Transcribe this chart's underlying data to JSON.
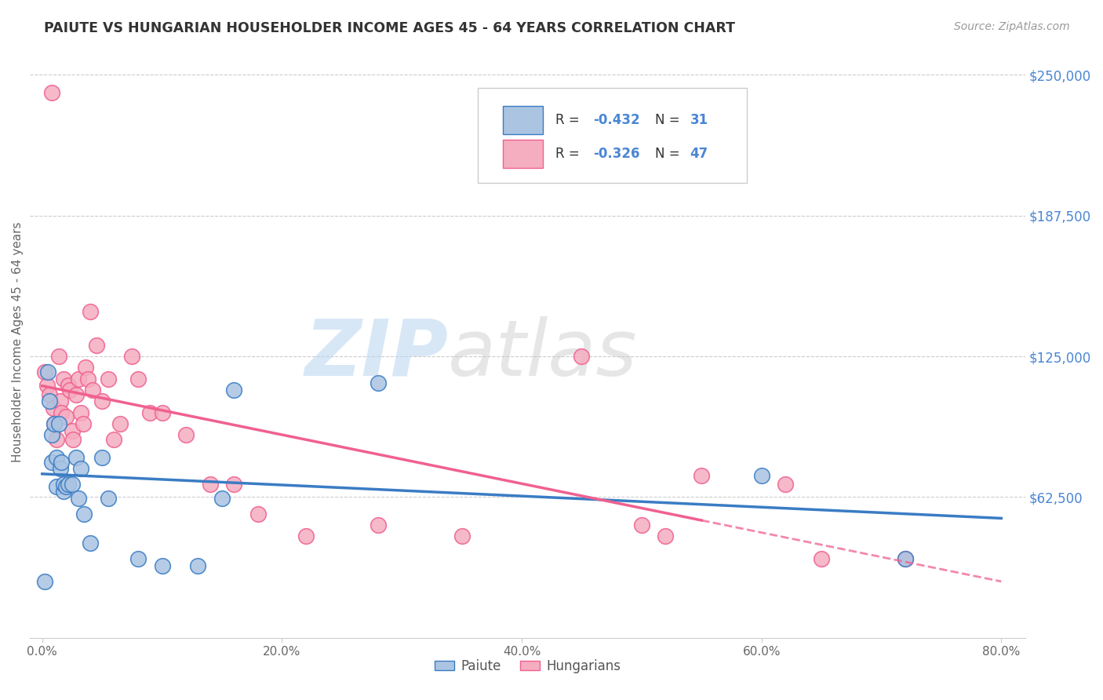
{
  "title": "PAIUTE VS HUNGARIAN HOUSEHOLDER INCOME AGES 45 - 64 YEARS CORRELATION CHART",
  "source": "Source: ZipAtlas.com",
  "ylabel": "Householder Income Ages 45 - 64 years",
  "xlim": [
    -0.01,
    0.82
  ],
  "ylim": [
    0,
    262500
  ],
  "xtick_labels": [
    "0.0%",
    "20.0%",
    "40.0%",
    "60.0%",
    "80.0%"
  ],
  "xtick_vals": [
    0.0,
    0.2,
    0.4,
    0.6,
    0.8
  ],
  "ytick_labels": [
    "$62,500",
    "$125,000",
    "$187,500",
    "$250,000"
  ],
  "ytick_vals": [
    62500,
    125000,
    187500,
    250000
  ],
  "paiute_color": "#aac4e2",
  "hungarian_color": "#f5adc0",
  "paiute_line_color": "#3a7cc4",
  "hungarian_line_color": "#f06090",
  "legend_R_paiute": "-0.432",
  "legend_N_paiute": "31",
  "legend_R_hungarian": "-0.326",
  "legend_N_hungarian": "47",
  "watermark_zip": "ZIP",
  "watermark_atlas": "atlas",
  "paiute_x": [
    0.002,
    0.005,
    0.006,
    0.008,
    0.008,
    0.01,
    0.012,
    0.012,
    0.014,
    0.015,
    0.016,
    0.018,
    0.018,
    0.02,
    0.022,
    0.025,
    0.028,
    0.03,
    0.032,
    0.035,
    0.04,
    0.05,
    0.055,
    0.08,
    0.1,
    0.13,
    0.15,
    0.16,
    0.28,
    0.6,
    0.72
  ],
  "paiute_y": [
    25000,
    118000,
    105000,
    90000,
    78000,
    95000,
    80000,
    67000,
    95000,
    75000,
    78000,
    65000,
    68000,
    67000,
    68000,
    68000,
    80000,
    62000,
    75000,
    55000,
    42000,
    80000,
    62000,
    35000,
    32000,
    32000,
    62000,
    110000,
    113000,
    72000,
    35000
  ],
  "hungarian_x": [
    0.002,
    0.004,
    0.006,
    0.008,
    0.009,
    0.01,
    0.012,
    0.014,
    0.015,
    0.016,
    0.018,
    0.02,
    0.022,
    0.023,
    0.025,
    0.026,
    0.028,
    0.03,
    0.032,
    0.034,
    0.036,
    0.038,
    0.04,
    0.042,
    0.045,
    0.05,
    0.055,
    0.06,
    0.065,
    0.075,
    0.08,
    0.09,
    0.1,
    0.12,
    0.14,
    0.16,
    0.18,
    0.22,
    0.28,
    0.35,
    0.45,
    0.5,
    0.52,
    0.55,
    0.62,
    0.65,
    0.72
  ],
  "hungarian_y": [
    118000,
    112000,
    108000,
    242000,
    102000,
    95000,
    88000,
    125000,
    105000,
    100000,
    115000,
    98000,
    112000,
    110000,
    92000,
    88000,
    108000,
    115000,
    100000,
    95000,
    120000,
    115000,
    145000,
    110000,
    130000,
    105000,
    115000,
    88000,
    95000,
    125000,
    115000,
    100000,
    100000,
    90000,
    68000,
    68000,
    55000,
    45000,
    50000,
    45000,
    125000,
    50000,
    45000,
    72000,
    68000,
    35000,
    35000
  ]
}
